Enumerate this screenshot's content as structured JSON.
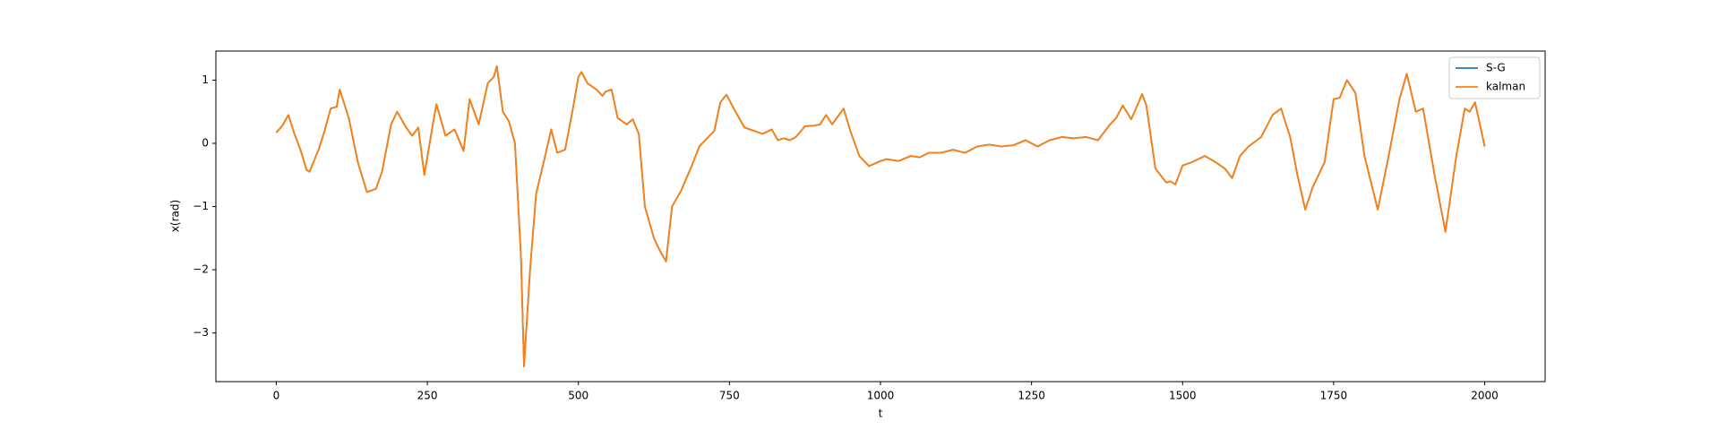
{
  "chart_data": {
    "type": "line",
    "xlabel": "t",
    "ylabel": "x(rad)",
    "x": [
      0,
      10,
      20,
      30,
      40,
      50,
      55,
      70,
      80,
      90,
      100,
      105,
      120,
      135,
      150,
      165,
      175,
      190,
      200,
      215,
      225,
      235,
      245,
      260,
      265,
      280,
      295,
      310,
      320,
      335,
      350,
      360,
      365,
      375,
      385,
      395,
      405,
      410,
      420,
      430,
      445,
      455,
      465,
      478,
      490,
      500,
      505,
      515,
      530,
      540,
      545,
      555,
      565,
      580,
      590,
      600,
      610,
      625,
      635,
      645,
      655,
      670,
      690,
      700,
      715,
      725,
      735,
      745,
      760,
      775,
      790,
      805,
      820,
      830,
      840,
      850,
      860,
      875,
      890,
      900,
      910,
      920,
      939,
      950,
      965,
      981,
      1000,
      1010,
      1030,
      1050,
      1065,
      1080,
      1100,
      1120,
      1140,
      1160,
      1180,
      1200,
      1220,
      1240,
      1260,
      1280,
      1300,
      1320,
      1340,
      1360,
      1380,
      1390,
      1401,
      1415,
      1425,
      1433,
      1440,
      1455,
      1473,
      1480,
      1488,
      1500,
      1515,
      1537,
      1555,
      1570,
      1582,
      1595,
      1609,
      1630,
      1649,
      1663,
      1678,
      1690,
      1703,
      1715,
      1735,
      1750,
      1760,
      1772,
      1786,
      1801,
      1823,
      1841,
      1859,
      1871,
      1886,
      1898,
      1917,
      1935,
      1953,
      1967,
      1975,
      1984,
      2000
    ],
    "series": [
      {
        "name": "S-G",
        "color": "#1f77b4",
        "values": [
          0.17,
          0.28,
          0.45,
          0.15,
          -0.1,
          -0.42,
          -0.45,
          -0.1,
          0.2,
          0.55,
          0.58,
          0.85,
          0.4,
          -0.3,
          -0.77,
          -0.72,
          -0.45,
          0.3,
          0.5,
          0.25,
          0.12,
          0.25,
          -0.5,
          0.35,
          0.62,
          0.12,
          0.22,
          -0.12,
          0.7,
          0.3,
          0.95,
          1.05,
          1.22,
          0.5,
          0.35,
          0.0,
          -1.8,
          -3.53,
          -2.0,
          -0.8,
          -0.2,
          0.22,
          -0.15,
          -0.1,
          0.5,
          1.05,
          1.13,
          0.95,
          0.85,
          0.75,
          0.82,
          0.85,
          0.4,
          0.3,
          0.38,
          0.15,
          -1.0,
          -1.5,
          -1.7,
          -1.87,
          -1.0,
          -0.75,
          -0.3,
          -0.05,
          0.1,
          0.2,
          0.65,
          0.77,
          0.5,
          0.25,
          0.2,
          0.15,
          0.22,
          0.05,
          0.08,
          0.05,
          0.1,
          0.27,
          0.28,
          0.3,
          0.45,
          0.3,
          0.55,
          0.2,
          -0.2,
          -0.36,
          -0.28,
          -0.25,
          -0.28,
          -0.2,
          -0.22,
          -0.15,
          -0.15,
          -0.1,
          -0.15,
          -0.05,
          -0.02,
          -0.05,
          -0.03,
          0.05,
          -0.05,
          0.05,
          0.1,
          0.08,
          0.1,
          0.05,
          0.3,
          0.4,
          0.6,
          0.38,
          0.6,
          0.78,
          0.6,
          -0.4,
          -0.62,
          -0.6,
          -0.65,
          -0.35,
          -0.3,
          -0.2,
          -0.3,
          -0.4,
          -0.55,
          -0.2,
          -0.05,
          0.1,
          0.45,
          0.55,
          0.1,
          -0.5,
          -1.05,
          -0.7,
          -0.3,
          0.7,
          0.72,
          1.0,
          0.8,
          -0.2,
          -1.05,
          -0.2,
          0.7,
          1.1,
          0.5,
          0.55,
          -0.5,
          -1.4,
          -0.2,
          0.55,
          0.5,
          0.65,
          -0.05
        ]
      },
      {
        "name": "kalman",
        "color": "#ff7f0e",
        "values": [
          0.17,
          0.28,
          0.45,
          0.15,
          -0.1,
          -0.42,
          -0.45,
          -0.1,
          0.2,
          0.55,
          0.58,
          0.85,
          0.4,
          -0.3,
          -0.77,
          -0.72,
          -0.45,
          0.3,
          0.5,
          0.25,
          0.12,
          0.25,
          -0.5,
          0.35,
          0.62,
          0.12,
          0.22,
          -0.12,
          0.7,
          0.3,
          0.95,
          1.05,
          1.22,
          0.5,
          0.35,
          0.0,
          -1.8,
          -3.53,
          -2.0,
          -0.8,
          -0.2,
          0.22,
          -0.15,
          -0.1,
          0.5,
          1.05,
          1.13,
          0.95,
          0.85,
          0.75,
          0.82,
          0.85,
          0.4,
          0.3,
          0.38,
          0.15,
          -1.0,
          -1.5,
          -1.7,
          -1.87,
          -1.0,
          -0.75,
          -0.3,
          -0.05,
          0.1,
          0.2,
          0.65,
          0.77,
          0.5,
          0.25,
          0.2,
          0.15,
          0.22,
          0.05,
          0.08,
          0.05,
          0.1,
          0.27,
          0.28,
          0.3,
          0.45,
          0.3,
          0.55,
          0.2,
          -0.2,
          -0.36,
          -0.28,
          -0.25,
          -0.28,
          -0.2,
          -0.22,
          -0.15,
          -0.15,
          -0.1,
          -0.15,
          -0.05,
          -0.02,
          -0.05,
          -0.03,
          0.05,
          -0.05,
          0.05,
          0.1,
          0.08,
          0.1,
          0.05,
          0.3,
          0.4,
          0.6,
          0.38,
          0.6,
          0.78,
          0.6,
          -0.4,
          -0.62,
          -0.6,
          -0.65,
          -0.35,
          -0.3,
          -0.2,
          -0.3,
          -0.4,
          -0.55,
          -0.2,
          -0.05,
          0.1,
          0.45,
          0.55,
          0.1,
          -0.5,
          -1.05,
          -0.7,
          -0.3,
          0.7,
          0.72,
          1.0,
          0.8,
          -0.2,
          -1.05,
          -0.2,
          0.7,
          1.1,
          0.5,
          0.55,
          -0.5,
          -1.4,
          -0.2,
          0.55,
          0.5,
          0.65,
          -0.05
        ]
      }
    ],
    "xlim": [
      -100,
      2100
    ],
    "xticks": [
      0,
      250,
      500,
      750,
      1000,
      1250,
      1500,
      1750,
      2000
    ],
    "ylim": [
      -3.77,
      1.46
    ],
    "yticks": [
      {
        "value": -3,
        "label": "−3"
      },
      {
        "value": -2,
        "label": "−2"
      },
      {
        "value": -1,
        "label": "−1"
      },
      0,
      1
    ],
    "legend": "upper right"
  }
}
